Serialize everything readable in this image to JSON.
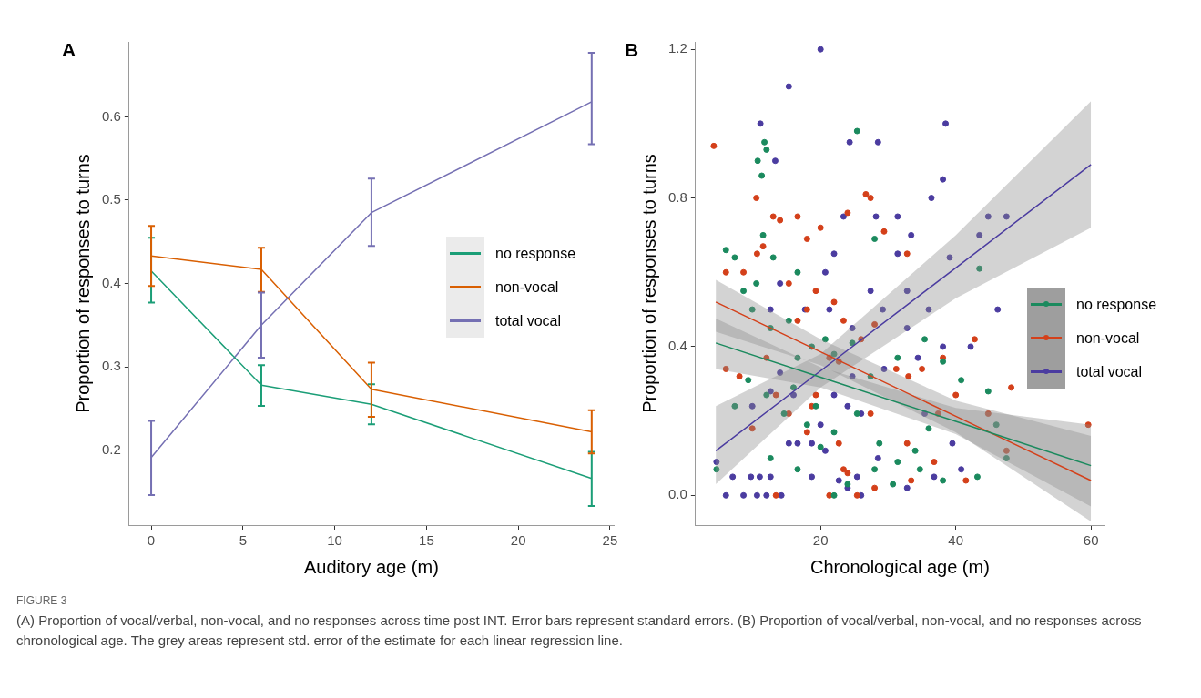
{
  "chart_data": [
    {
      "type": "line",
      "title": "A",
      "xlabel": "Auditory age (m)",
      "ylabel": "Proportion of responses to turns",
      "x": [
        0,
        6,
        12,
        24
      ],
      "xlim": [
        -1.2,
        25.2
      ],
      "xticks": [
        0,
        5,
        10,
        15,
        20,
        25
      ],
      "ylim": [
        0.11,
        0.69
      ],
      "yticks": [
        0.2,
        0.3,
        0.4,
        0.5,
        0.6
      ],
      "grid": false,
      "legend": "right",
      "marker": "none",
      "series": [
        {
          "name": "no response",
          "color": "#1b9e77",
          "values": [
            0.415,
            0.278,
            0.255,
            0.166
          ],
          "errors": [
            [
              0.377,
              0.455
            ],
            [
              0.253,
              0.302
            ],
            [
              0.231,
              0.279
            ],
            [
              0.133,
              0.198
            ]
          ]
        },
        {
          "name": "non-vocal",
          "color": "#d95f02",
          "values": [
            0.433,
            0.417,
            0.273,
            0.222
          ],
          "errors": [
            [
              0.397,
              0.469
            ],
            [
              0.39,
              0.443
            ],
            [
              0.24,
              0.305
            ],
            [
              0.196,
              0.248
            ]
          ]
        },
        {
          "name": "total vocal",
          "color": "#7570b3",
          "values": [
            0.191,
            0.35,
            0.485,
            0.618
          ],
          "errors": [
            [
              0.146,
              0.235
            ],
            [
              0.311,
              0.389
            ],
            [
              0.445,
              0.526
            ],
            [
              0.567,
              0.677
            ]
          ]
        }
      ]
    },
    {
      "type": "scatter",
      "title": "B",
      "xlabel": "Chronological age (m)",
      "ylabel": "Proportion of responses to turns",
      "xlim": [
        1.5,
        62
      ],
      "xticks": [
        20,
        40,
        60
      ],
      "ylim": [
        -0.08,
        1.22
      ],
      "yticks": [
        {
          "value": 0,
          "label": "0.0"
        },
        {
          "value": 0.4,
          "label": "0.4"
        },
        {
          "value": 0.8,
          "label": "0.8"
        },
        {
          "value": 1.2,
          "label": "1.2"
        }
      ],
      "grid": false,
      "legend": "right",
      "marker": "circle",
      "series": [
        {
          "name": "no response",
          "color": "#1b8a5e",
          "x": [
            10.7,
            11.7,
            12,
            11.3,
            25.4,
            6,
            7.3,
            11.5,
            13,
            8.6,
            10.5,
            16.6,
            28,
            43.5,
            9.9,
            12.6,
            15.3,
            18.7,
            20.7,
            16.6,
            22,
            24.7,
            27.4,
            31.4,
            35.4,
            38.1,
            40.8,
            44.8,
            47.5,
            46,
            43.2,
            38.1,
            34.7,
            31.4,
            28.7,
            25.4,
            22,
            20,
            18,
            14.6,
            12,
            9.3,
            4.6,
            7.3,
            12.6,
            16.6,
            22,
            24,
            28,
            30.7,
            34,
            36,
            16,
            19.3
          ],
          "values": [
            0.9,
            0.95,
            0.93,
            0.86,
            0.98,
            0.66,
            0.64,
            0.7,
            0.64,
            0.55,
            0.57,
            0.6,
            0.69,
            0.61,
            0.5,
            0.45,
            0.47,
            0.4,
            0.42,
            0.37,
            0.38,
            0.41,
            0.32,
            0.37,
            0.42,
            0.36,
            0.31,
            0.28,
            0.1,
            0.19,
            0.05,
            0.04,
            0.07,
            0.09,
            0.14,
            0.22,
            0.17,
            0.13,
            0.19,
            0.22,
            0.27,
            0.31,
            0.07,
            0.24,
            0.1,
            0.07,
            0,
            0.03,
            0.07,
            0.03,
            0.12,
            0.18,
            0.29,
            0.24
          ]
        },
        {
          "name": "non-vocal",
          "color": "#d4401a",
          "x": [
            4.2,
            10.5,
            10.6,
            11.5,
            13,
            14,
            16.6,
            18,
            20,
            24,
            26.7,
            27.4,
            29.4,
            32.8,
            8.6,
            6,
            15.3,
            16.6,
            18,
            19.3,
            22,
            23.4,
            26,
            28,
            31.2,
            33,
            35,
            38.1,
            42.8,
            48.2,
            59.6,
            44.8,
            40,
            37.4,
            32.8,
            36.8,
            41.5,
            47.5,
            6,
            8,
            12,
            13.4,
            15.3,
            18,
            19.3,
            22.7,
            23.4,
            24,
            25.4,
            21.3,
            28,
            27.4,
            33.4,
            13.4,
            9.9,
            18.7,
            21.3,
            22.7
          ],
          "values": [
            0.94,
            0.8,
            0.65,
            0.67,
            0.75,
            0.74,
            0.75,
            0.69,
            0.72,
            0.76,
            0.81,
            0.8,
            0.71,
            0.65,
            0.6,
            0.6,
            0.57,
            0.47,
            0.5,
            0.55,
            0.52,
            0.47,
            0.42,
            0.46,
            0.34,
            0.32,
            0.34,
            0.37,
            0.42,
            0.29,
            0.19,
            0.22,
            0.27,
            0.22,
            0.14,
            0.09,
            0.04,
            0.12,
            0.34,
            0.32,
            0.37,
            0.27,
            0.22,
            0.17,
            0.27,
            0.14,
            0.07,
            0.06,
            0,
            0,
            0.02,
            0.22,
            0.04,
            0,
            0.18,
            0.24,
            0.37,
            0.36
          ]
        },
        {
          "name": "total vocal",
          "color": "#4b3ca0",
          "x": [
            11.1,
            15.3,
            20,
            13.3,
            24.3,
            28.5,
            38.5,
            38.1,
            36.4,
            28.2,
            23.4,
            31.4,
            33.4,
            44.8,
            47.5,
            43.5,
            39.1,
            14,
            20.7,
            22,
            31.4,
            27.4,
            32.8,
            36,
            29.2,
            17.7,
            21.3,
            46.2,
            24.7,
            32.8,
            42.2,
            38.1,
            12.6,
            4.6,
            6,
            8.6,
            10.6,
            12,
            14.2,
            12.6,
            7,
            9.7,
            11,
            15.3,
            16.6,
            18.7,
            20.7,
            9.9,
            12.6,
            16,
            14,
            22,
            24,
            26,
            22.7,
            25.4,
            28.5,
            20,
            24.7,
            29.4,
            34.4,
            35.4,
            39.5,
            40.8,
            36.8,
            32.8,
            24,
            26,
            18.7
          ],
          "values": [
            1,
            1.1,
            1.2,
            0.9,
            0.95,
            0.95,
            1,
            0.85,
            0.8,
            0.75,
            0.75,
            0.75,
            0.7,
            0.75,
            0.75,
            0.7,
            0.64,
            0.57,
            0.6,
            0.65,
            0.65,
            0.55,
            0.55,
            0.5,
            0.5,
            0.5,
            0.5,
            0.5,
            0.45,
            0.45,
            0.4,
            0.4,
            0.5,
            0.09,
            0,
            0,
            0,
            0,
            0,
            0.05,
            0.05,
            0.05,
            0.05,
            0.14,
            0.14,
            0.14,
            0.12,
            0.24,
            0.28,
            0.27,
            0.33,
            0.27,
            0.24,
            0.22,
            0.04,
            0.05,
            0.1,
            0.19,
            0.32,
            0.34,
            0.37,
            0.22,
            0.14,
            0.07,
            0.05,
            0.02,
            0.02,
            0,
            0.05
          ]
        },
        {
          "type": "line",
          "marker": "none",
          "color": "#1b8a5e",
          "x": [
            4.5,
            20,
            40,
            60
          ],
          "values": [
            0.41,
            0.318,
            0.199,
            0.08
          ],
          "lower": [
            0.34,
            0.29,
            0.165,
            -0.03
          ],
          "upper": [
            0.476,
            0.345,
            0.235,
            0.19
          ]
        },
        {
          "type": "line",
          "marker": "none",
          "color": "#d4401a",
          "x": [
            4.5,
            20,
            40,
            60
          ],
          "values": [
            0.52,
            0.386,
            0.213,
            0.04
          ],
          "lower": [
            0.44,
            0.35,
            0.17,
            -0.07
          ],
          "upper": [
            0.58,
            0.42,
            0.255,
            0.16
          ]
        },
        {
          "type": "line",
          "marker": "none",
          "color": "#4b3ca0",
          "x": [
            4.5,
            20,
            40,
            60
          ],
          "values": [
            0.12,
            0.335,
            0.612,
            0.89
          ],
          "lower": [
            0.03,
            0.29,
            0.53,
            0.72
          ],
          "upper": [
            0.24,
            0.38,
            0.7,
            1.06
          ]
        }
      ]
    },
    {
      "type": "other",
      "title": "FIGURE 3",
      "annotations": [
        "(A) Proportion of vocal/verbal, non-vocal, and no responses across time post INT. Error bars represent standard errors. (B) Proportion of vocal/verbal, non-vocal, and no responses across chronological age. The grey areas represent std. error of the estimate for each linear regression line."
      ]
    }
  ]
}
